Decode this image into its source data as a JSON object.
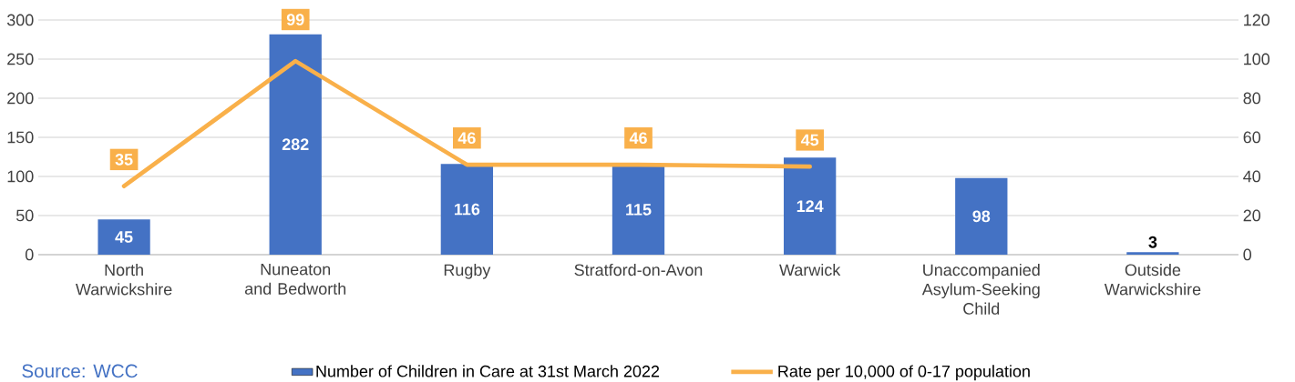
{
  "chart_data": {
    "type": "bar",
    "categories": [
      "North Warwickshire",
      "Nuneaton and Bedworth",
      "Rugby",
      "Stratford-on-Avon",
      "Warwick",
      "Unaccompanied Asylum-Seeking Child",
      "Outside Warwickshire"
    ],
    "series": [
      {
        "name": "Number of Children in Care at 31st March 2022",
        "color": "#4472c4",
        "values": [
          45,
          282,
          116,
          115,
          124,
          98,
          3
        ]
      },
      {
        "name": "Rate per 10,000 of 0-17 population",
        "type": "line",
        "axis": "y2",
        "color": "#f9b04a",
        "values": [
          35,
          99,
          46,
          46,
          45,
          null,
          null
        ]
      }
    ],
    "ylim": [
      0,
      300
    ],
    "yticks": [
      0,
      50,
      100,
      150,
      200,
      250,
      300
    ],
    "y2lim": [
      0,
      120
    ],
    "y2ticks": [
      0,
      20,
      40,
      60,
      80,
      100,
      120
    ],
    "grid": "y",
    "legend": "bottom",
    "data_labels": true,
    "annotations": [
      "Source: WCC"
    ]
  }
}
